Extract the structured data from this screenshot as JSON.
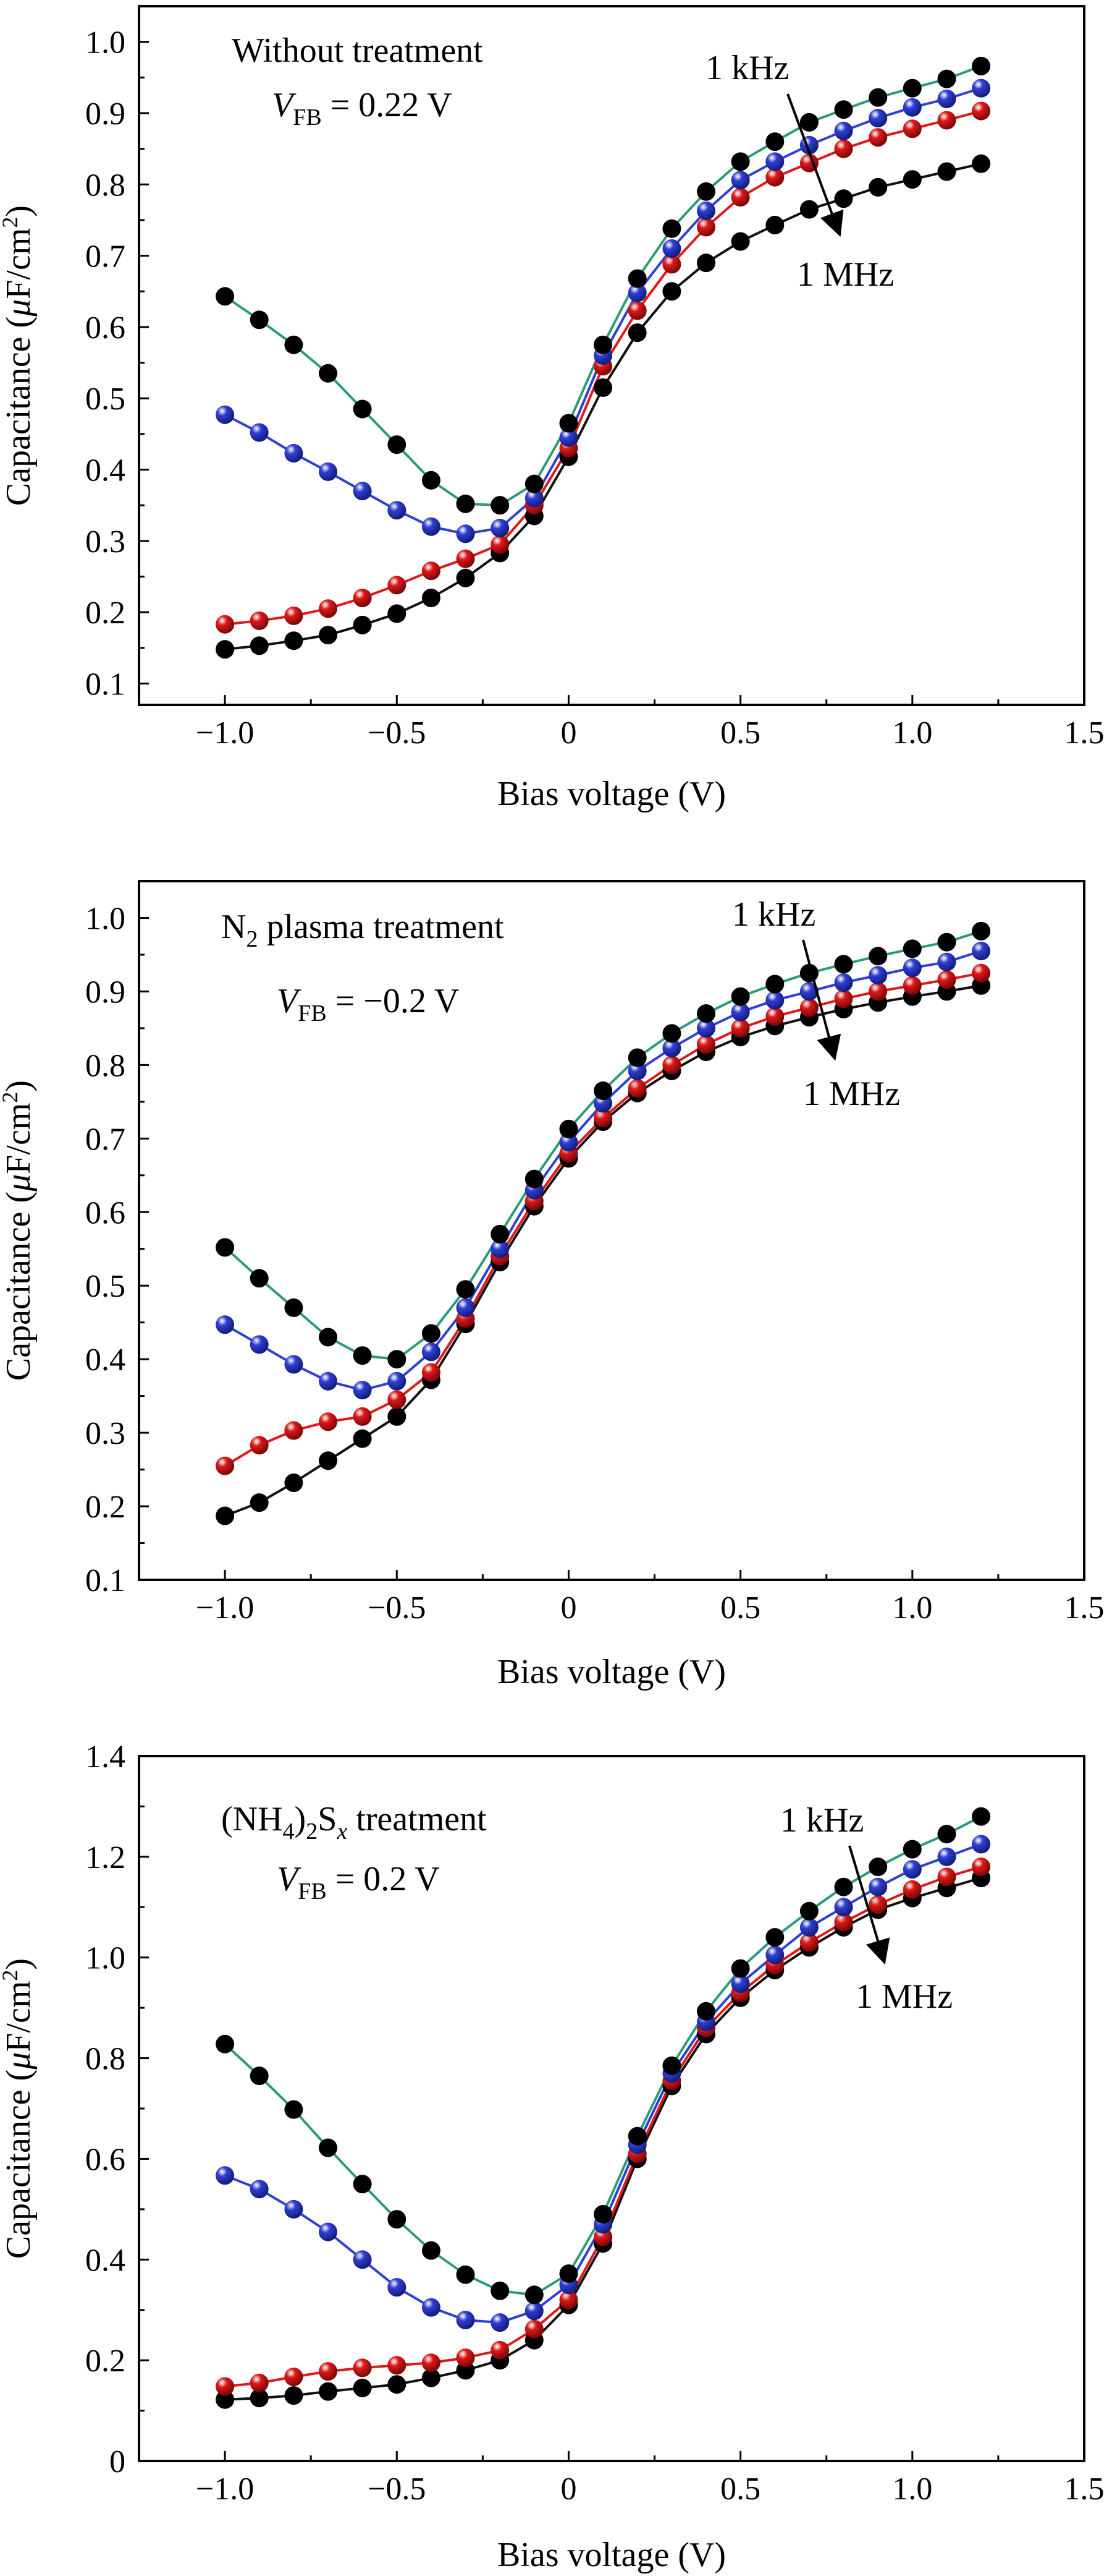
{
  "colors": {
    "1 kHz": "#2a9b78",
    "series2": "#2f3fd6",
    "series3": "#e01818",
    "1 MHz": "#111111"
  },
  "chart_data": [
    {
      "type": "line",
      "xlabel": "Bias voltage (V)",
      "ylabel": "Capacitance (μF/cm²)",
      "xlim": [
        -1.25,
        1.5
      ],
      "ylim": [
        0.07,
        1.05
      ],
      "xticks": [
        -1.0,
        -0.5,
        0,
        0.5,
        1.0,
        1.5
      ],
      "xtick_labels": [
        "−1.0",
        "−0.5",
        "0",
        "0.5",
        "1.0",
        "1.5"
      ],
      "yticks": [
        0.1,
        0.2,
        0.3,
        0.4,
        0.5,
        0.6,
        0.7,
        0.8,
        0.9,
        1.0
      ],
      "ytick_labels": [
        "0.1",
        "0.2",
        "0.3",
        "0.4",
        "0.5",
        "0.6",
        "0.7",
        "0.8",
        "0.9",
        "1.0"
      ],
      "grid": false,
      "annotation": {
        "title": "Without treatment",
        "vfb_label": "V",
        "vfb_sub": "FB",
        "vfb_value": " = 0.22 V",
        "arrow_start_label": "1 kHz",
        "arrow_end_label": "1 MHz"
      },
      "x": [
        -1.0,
        -0.9,
        -0.8,
        -0.7,
        -0.6,
        -0.5,
        -0.4,
        -0.3,
        -0.2,
        -0.1,
        0,
        0.1,
        0.2,
        0.3,
        0.4,
        0.5,
        0.6,
        0.7,
        0.8,
        0.9,
        1.0,
        1.1,
        1.2
      ],
      "series": [
        {
          "color_key": "1 kHz",
          "values": [
            0.643,
            0.61,
            0.575,
            0.535,
            0.485,
            0.435,
            0.385,
            0.352,
            0.35,
            0.38,
            0.465,
            0.575,
            0.668,
            0.738,
            0.79,
            0.832,
            0.86,
            0.887,
            0.905,
            0.922,
            0.935,
            0.948,
            0.966
          ]
        },
        {
          "color_key": "series2",
          "values": [
            0.477,
            0.452,
            0.423,
            0.397,
            0.37,
            0.343,
            0.32,
            0.31,
            0.318,
            0.36,
            0.445,
            0.56,
            0.648,
            0.71,
            0.763,
            0.806,
            0.832,
            0.855,
            0.875,
            0.893,
            0.908,
            0.92,
            0.935
          ]
        },
        {
          "color_key": "series3",
          "values": [
            0.183,
            0.188,
            0.195,
            0.205,
            0.22,
            0.238,
            0.258,
            0.275,
            0.295,
            0.35,
            0.43,
            0.545,
            0.623,
            0.688,
            0.74,
            0.782,
            0.81,
            0.83,
            0.85,
            0.866,
            0.878,
            0.89,
            0.903
          ]
        },
        {
          "color_key": "1 MHz",
          "values": [
            0.148,
            0.153,
            0.16,
            0.168,
            0.182,
            0.198,
            0.22,
            0.248,
            0.283,
            0.335,
            0.418,
            0.515,
            0.592,
            0.65,
            0.69,
            0.72,
            0.743,
            0.765,
            0.78,
            0.796,
            0.807,
            0.818,
            0.829
          ]
        }
      ]
    },
    {
      "type": "line",
      "xlabel": "Bias voltage (V)",
      "ylabel": "Capacitance (μF/cm²)",
      "xlim": [
        -1.25,
        1.5
      ],
      "ylim": [
        0.1,
        1.05
      ],
      "xticks": [
        -1.0,
        -0.5,
        0,
        0.5,
        1.0,
        1.5
      ],
      "xtick_labels": [
        "−1.0",
        "−0.5",
        "0",
        "0.5",
        "1.0",
        "1.5"
      ],
      "yticks": [
        0.1,
        0.2,
        0.3,
        0.4,
        0.5,
        0.6,
        0.7,
        0.8,
        0.9,
        1.0
      ],
      "ytick_labels": [
        "0.1",
        "0.2",
        "0.3",
        "0.4",
        "0.5",
        "0.6",
        "0.7",
        "0.8",
        "0.9",
        "1.0"
      ],
      "grid": false,
      "annotation": {
        "title_pre": "N",
        "title_sub": "2",
        "title_post": " plasma treatment",
        "vfb_label": "V",
        "vfb_sub": "FB",
        "vfb_value": " = −0.2 V",
        "arrow_start_label": "1 kHz",
        "arrow_end_label": "1 MHz"
      },
      "x": [
        -1.0,
        -0.9,
        -0.8,
        -0.7,
        -0.6,
        -0.5,
        -0.4,
        -0.3,
        -0.2,
        -0.1,
        0,
        0.1,
        0.2,
        0.3,
        0.4,
        0.5,
        0.6,
        0.7,
        0.8,
        0.9,
        1.0,
        1.1,
        1.2
      ],
      "series": [
        {
          "color_key": "1 kHz",
          "values": [
            0.552,
            0.51,
            0.47,
            0.43,
            0.405,
            0.4,
            0.435,
            0.495,
            0.57,
            0.645,
            0.713,
            0.765,
            0.81,
            0.843,
            0.87,
            0.893,
            0.91,
            0.925,
            0.937,
            0.948,
            0.958,
            0.967,
            0.982
          ]
        },
        {
          "color_key": "series2",
          "values": [
            0.447,
            0.42,
            0.393,
            0.37,
            0.358,
            0.37,
            0.41,
            0.47,
            0.55,
            0.63,
            0.695,
            0.748,
            0.792,
            0.823,
            0.85,
            0.872,
            0.888,
            0.9,
            0.912,
            0.922,
            0.932,
            0.94,
            0.955
          ]
        },
        {
          "color_key": "series3",
          "values": [
            0.255,
            0.283,
            0.303,
            0.315,
            0.322,
            0.345,
            0.382,
            0.455,
            0.54,
            0.615,
            0.68,
            0.728,
            0.768,
            0.8,
            0.828,
            0.85,
            0.866,
            0.878,
            0.89,
            0.9,
            0.908,
            0.916,
            0.925
          ]
        },
        {
          "color_key": "1 MHz",
          "values": [
            0.187,
            0.205,
            0.232,
            0.262,
            0.292,
            0.322,
            0.372,
            0.448,
            0.532,
            0.608,
            0.673,
            0.723,
            0.762,
            0.792,
            0.818,
            0.838,
            0.853,
            0.865,
            0.876,
            0.885,
            0.893,
            0.9,
            0.908
          ]
        }
      ]
    },
    {
      "type": "line",
      "xlabel": "Bias voltage (V)",
      "ylabel": "Capacitance (μF/cm²)",
      "xlim": [
        -1.25,
        1.5
      ],
      "ylim": [
        0,
        1.4
      ],
      "xticks": [
        -1.0,
        -0.5,
        0,
        0.5,
        1.0,
        1.5
      ],
      "xtick_labels": [
        "−1.0",
        "−0.5",
        "0",
        "0.5",
        "1.0",
        "1.5"
      ],
      "yticks": [
        0,
        0.2,
        0.4,
        0.6,
        0.8,
        1.0,
        1.2,
        1.4
      ],
      "ytick_labels": [
        "0",
        "0.2",
        "0.4",
        "0.6",
        "0.8",
        "1.0",
        "1.2",
        "1.4"
      ],
      "grid": false,
      "annotation": {
        "title_pre": "(NH",
        "title_sub1": "4",
        "title_mid": ")",
        "title_sub2": "2",
        "title_s": "S",
        "title_subx": "x",
        "title_post": " treatment",
        "vfb_label": "V",
        "vfb_sub": "FB",
        "vfb_value": " = 0.2 V",
        "arrow_start_label": "1 kHz",
        "arrow_end_label": "1 MHz"
      },
      "x": [
        -1.0,
        -0.9,
        -0.8,
        -0.7,
        -0.6,
        -0.5,
        -0.4,
        -0.3,
        -0.2,
        -0.1,
        0,
        0.1,
        0.2,
        0.3,
        0.4,
        0.5,
        0.6,
        0.7,
        0.8,
        0.9,
        1.0,
        1.1,
        1.2
      ],
      "series": [
        {
          "color_key": "1 kHz",
          "values": [
            0.828,
            0.765,
            0.698,
            0.622,
            0.55,
            0.48,
            0.418,
            0.37,
            0.338,
            0.33,
            0.372,
            0.49,
            0.645,
            0.785,
            0.893,
            0.978,
            1.04,
            1.092,
            1.14,
            1.18,
            1.215,
            1.245,
            1.28
          ]
        },
        {
          "color_key": "series2",
          "values": [
            0.567,
            0.54,
            0.5,
            0.455,
            0.4,
            0.345,
            0.305,
            0.28,
            0.275,
            0.298,
            0.35,
            0.47,
            0.628,
            0.77,
            0.872,
            0.948,
            1.005,
            1.06,
            1.1,
            1.14,
            1.175,
            1.2,
            1.225
          ]
        },
        {
          "color_key": "series3",
          "values": [
            0.148,
            0.155,
            0.167,
            0.178,
            0.185,
            0.19,
            0.195,
            0.205,
            0.22,
            0.262,
            0.32,
            0.445,
            0.61,
            0.755,
            0.86,
            0.93,
            0.985,
            1.03,
            1.07,
            1.105,
            1.135,
            1.16,
            1.18
          ]
        },
        {
          "color_key": "1 MHz",
          "values": [
            0.122,
            0.125,
            0.13,
            0.138,
            0.145,
            0.152,
            0.165,
            0.18,
            0.2,
            0.24,
            0.31,
            0.432,
            0.6,
            0.745,
            0.848,
            0.92,
            0.975,
            1.02,
            1.06,
            1.095,
            1.118,
            1.138,
            1.158
          ]
        }
      ]
    }
  ]
}
